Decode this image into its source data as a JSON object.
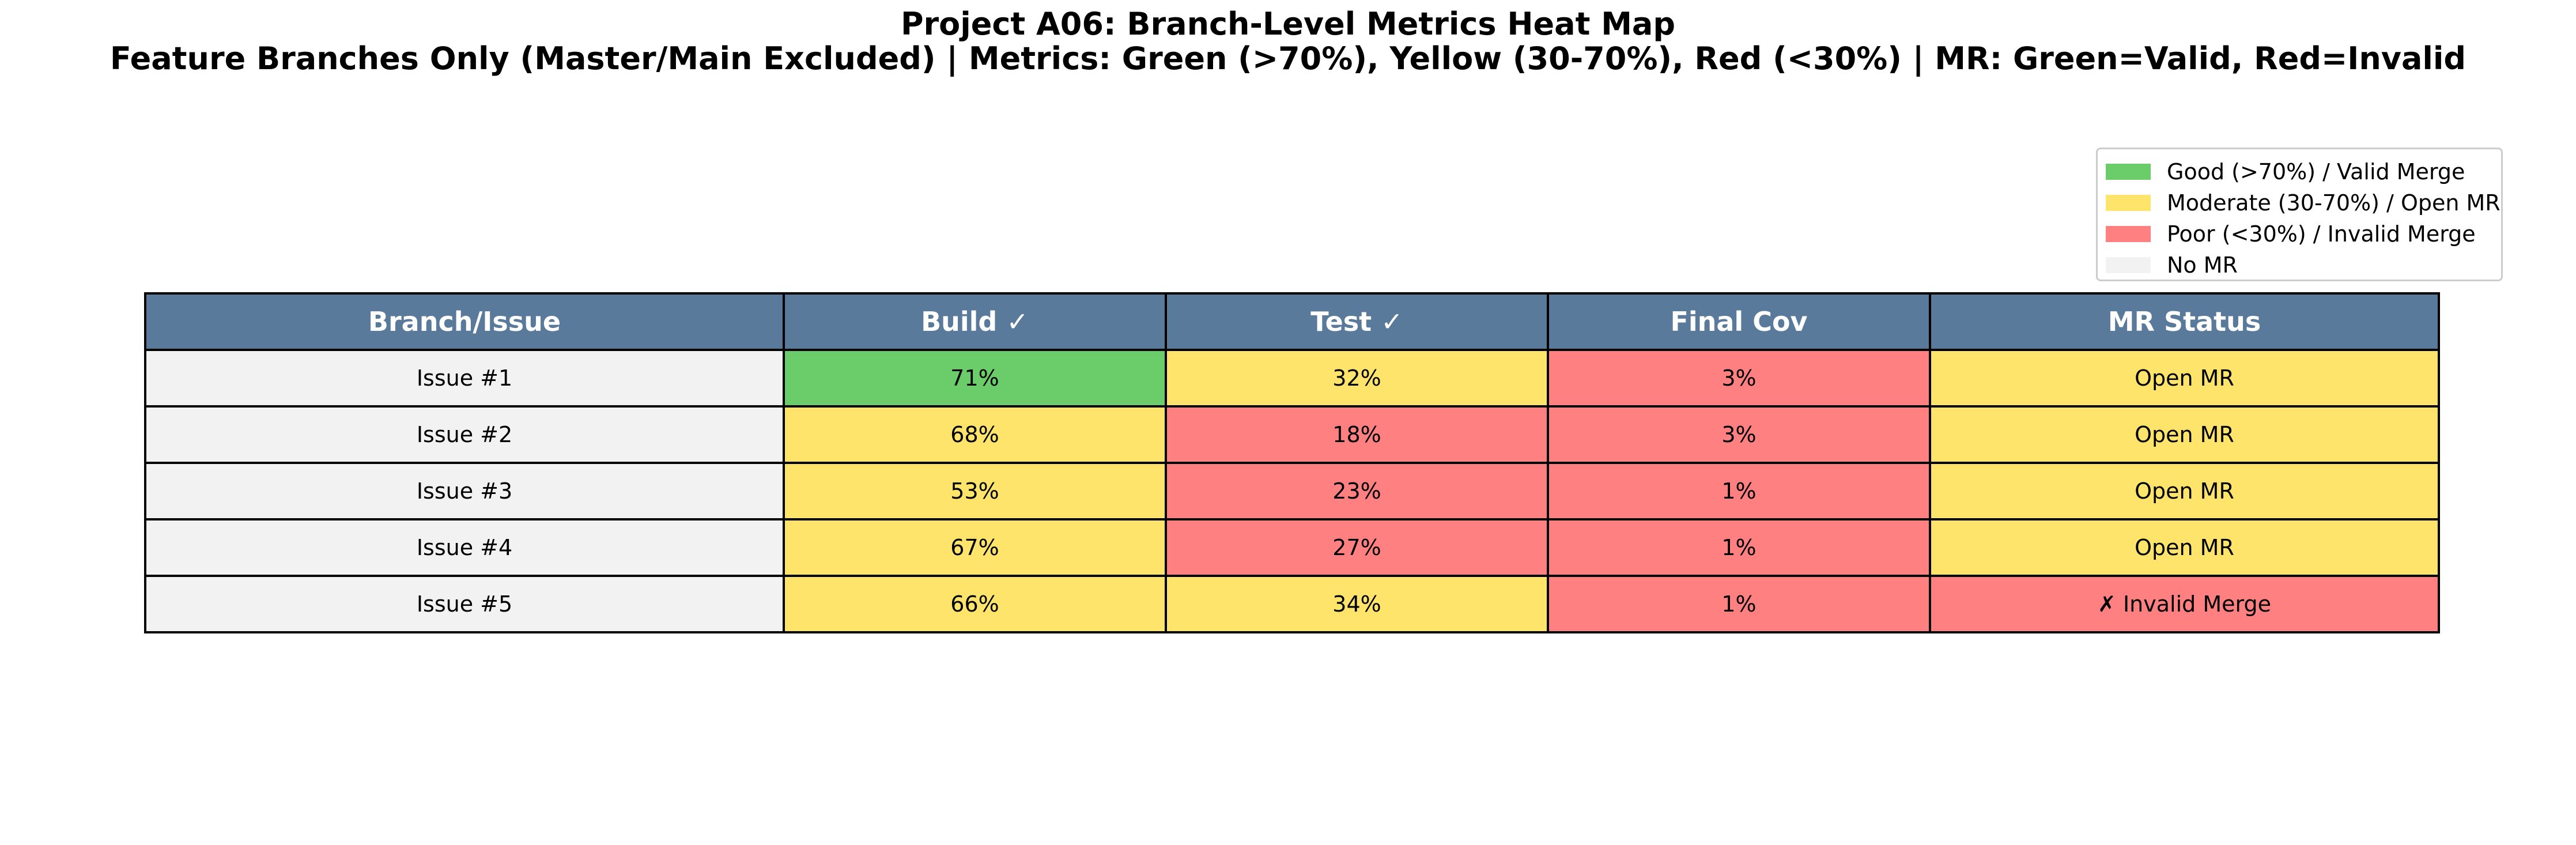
{
  "title": "Project A06: Branch-Level Metrics Heat Map",
  "subtitle": "Feature Branches Only (Master/Main Excluded) | Metrics: Green (>70%), Yellow (30-70%), Red (<30%) | MR: Green=Valid, Red=Invalid",
  "colors": {
    "header": "#5a7a9b",
    "good": "#6acd6a",
    "moderate": "#fee46a",
    "poor": "#fe8080",
    "none": "#f2f2f2"
  },
  "legend": [
    {
      "label": "Good (>70%) / Valid Merge",
      "status": "good"
    },
    {
      "label": "Moderate (30-70%) / Open MR",
      "status": "moderate"
    },
    {
      "label": "Poor (<30%) / Invalid Merge",
      "status": "poor"
    },
    {
      "label": "No MR",
      "status": "none"
    }
  ],
  "chart_data": {
    "type": "heatmap",
    "title": "Project A06: Branch-Level Metrics Heat Map",
    "subtitle": "Feature Branches Only (Master/Main Excluded) | Metrics: Green (>70%), Yellow (30-70%), Red (<30%) | MR: Green=Valid, Red=Invalid",
    "columns": [
      "Branch/Issue",
      "Build ✓",
      "Test ✓",
      "Final Cov",
      "MR Status"
    ],
    "rows": [
      {
        "branch": "Issue #1",
        "cells": [
          {
            "text": "71%",
            "value": 71,
            "status": "good"
          },
          {
            "text": "32%",
            "value": 32,
            "status": "moderate"
          },
          {
            "text": "3%",
            "value": 3,
            "status": "poor"
          },
          {
            "text": "Open MR",
            "status": "moderate"
          }
        ]
      },
      {
        "branch": "Issue #2",
        "cells": [
          {
            "text": "68%",
            "value": 68,
            "status": "moderate"
          },
          {
            "text": "18%",
            "value": 18,
            "status": "poor"
          },
          {
            "text": "3%",
            "value": 3,
            "status": "poor"
          },
          {
            "text": "Open MR",
            "status": "moderate"
          }
        ]
      },
      {
        "branch": "Issue #3",
        "cells": [
          {
            "text": "53%",
            "value": 53,
            "status": "moderate"
          },
          {
            "text": "23%",
            "value": 23,
            "status": "poor"
          },
          {
            "text": "1%",
            "value": 1,
            "status": "poor"
          },
          {
            "text": "Open MR",
            "status": "moderate"
          }
        ]
      },
      {
        "branch": "Issue #4",
        "cells": [
          {
            "text": "67%",
            "value": 67,
            "status": "moderate"
          },
          {
            "text": "27%",
            "value": 27,
            "status": "poor"
          },
          {
            "text": "1%",
            "value": 1,
            "status": "poor"
          },
          {
            "text": "Open MR",
            "status": "moderate"
          }
        ]
      },
      {
        "branch": "Issue #5",
        "cells": [
          {
            "text": "66%",
            "value": 66,
            "status": "moderate"
          },
          {
            "text": "34%",
            "value": 34,
            "status": "moderate"
          },
          {
            "text": "1%",
            "value": 1,
            "status": "poor"
          },
          {
            "text": "✗ Invalid Merge",
            "status": "poor"
          }
        ]
      }
    ]
  }
}
